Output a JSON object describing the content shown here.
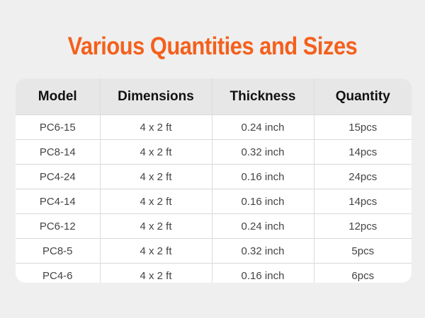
{
  "title": "Various Quantities and Sizes",
  "colors": {
    "title": "#f4601c",
    "header_bg": "#e7e7e7",
    "page_bg": "#efefef"
  },
  "table": {
    "headers": [
      "Model",
      "Dimensions",
      "Thickness",
      "Quantity"
    ],
    "rows": [
      [
        "PC6-15",
        "4 x 2 ft",
        "0.24 inch",
        "15pcs"
      ],
      [
        "PC8-14",
        "4 x 2 ft",
        "0.32 inch",
        "14pcs"
      ],
      [
        "PC4-24",
        "4 x 2 ft",
        "0.16 inch",
        "24pcs"
      ],
      [
        "PC4-14",
        "4 x 2 ft",
        "0.16 inch",
        "14pcs"
      ],
      [
        "PC6-12",
        "4 x 2 ft",
        "0.24 inch",
        "12pcs"
      ],
      [
        "PC8-5",
        "4 x 2 ft",
        "0.32 inch",
        "5pcs"
      ],
      [
        "PC4-6",
        "4 x 2 ft",
        "0.16 inch",
        "6pcs"
      ]
    ]
  }
}
